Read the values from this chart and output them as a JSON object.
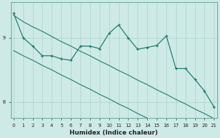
{
  "xlabel": "Humidex (Indice chaleur)",
  "bg_color": "#ceeae6",
  "line_color": "#1a7a6e",
  "grid_color": "#aed4cf",
  "x_values": [
    0,
    1,
    2,
    3,
    4,
    5,
    6,
    7,
    8,
    9,
    10,
    11,
    12,
    13,
    14,
    15,
    16,
    17,
    18,
    19,
    20,
    21
  ],
  "y_main": [
    9.38,
    9.0,
    8.87,
    8.72,
    8.72,
    8.67,
    8.65,
    8.87,
    8.87,
    8.83,
    9.07,
    9.2,
    9.0,
    8.82,
    8.85,
    8.88,
    9.03,
    8.52,
    8.52,
    8.35,
    8.17,
    7.92
  ],
  "y_trend_upper": [
    9.35,
    9.25,
    9.17,
    9.1,
    9.02,
    8.94,
    8.87,
    8.79,
    8.72,
    8.64,
    8.57,
    8.49,
    8.42,
    8.34,
    8.27,
    8.19,
    8.12,
    8.04,
    7.97,
    7.89,
    7.82,
    7.74
  ],
  "y_trend_lower": [
    8.8,
    8.72,
    8.65,
    8.57,
    8.5,
    8.42,
    8.35,
    8.27,
    8.2,
    8.12,
    8.05,
    7.97,
    7.9,
    7.82,
    7.75,
    7.67,
    7.6,
    7.52,
    7.45,
    7.37,
    7.3,
    7.22
  ],
  "ylim": [
    7.75,
    9.55
  ],
  "xlim": [
    -0.3,
    21.3
  ],
  "yticks": [
    8,
    9
  ],
  "xticks": [
    0,
    1,
    2,
    3,
    4,
    5,
    6,
    7,
    8,
    9,
    10,
    11,
    12,
    13,
    14,
    15,
    16,
    17,
    18,
    19,
    20,
    21
  ]
}
